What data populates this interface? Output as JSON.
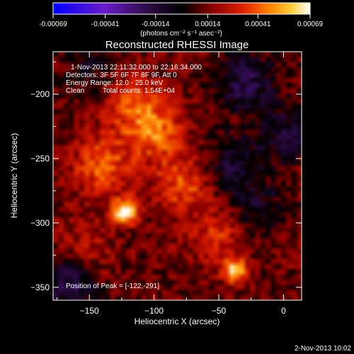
{
  "colorbar": {
    "ticks": [
      -0.00069,
      -0.00041,
      -0.00014,
      0.00014,
      0.00041,
      0.00069
    ],
    "tick_labels": [
      "-0.00069",
      "-0.00041",
      "-0.00014",
      "0.00014",
      "0.00041",
      "0.00069"
    ],
    "label": "(photons cm⁻² s⁻¹ asec⁻²)"
  },
  "info": {
    "time_range": "1-Nov-2013 22:11:32.000 to 22:16:34.000",
    "detectors": "Detectors: 3F 5F 6F 7F 8F 9F, Att 0",
    "energy": "Energy Range: 12.0 - 25.0 keV",
    "clean": "Clean",
    "counts": "Total counts: 1.54E+04",
    "peak": "Position of Peak = [-122,-291]"
  },
  "footer": {
    "timestamp": "2-Nov-2013 10:02"
  },
  "colors": {
    "axis": "#ffffff",
    "background": "#000000",
    "low": "#1010ff",
    "mid": "#000000",
    "high": "#ffffff"
  },
  "chart_data": {
    "type": "heatmap",
    "title": "Reconstructed RHESSI Image",
    "xlabel": "Heliocentric X (arcsec)",
    "ylabel": "Heliocentric Y (arcsec)",
    "xlim": [
      -178,
      14
    ],
    "ylim": [
      -360,
      -167
    ],
    "xticks": [
      -150,
      -100,
      -50,
      0
    ],
    "yticks": [
      -350,
      -300,
      -250,
      -200
    ],
    "xtick_labels": [
      "−150",
      "−100",
      "−50",
      "0"
    ],
    "ytick_labels": [
      "−350",
      "−300",
      "−250",
      "−200"
    ],
    "colorscale": "blue-purple-black-red-yellow-white",
    "sources": [
      {
        "x": -122,
        "y": -291,
        "value": 0.00069
      },
      {
        "x": -37,
        "y": -337,
        "value": 0.00048
      },
      {
        "x": -100,
        "y": -228,
        "value": 0.00034
      },
      {
        "x": -140,
        "y": -255,
        "value": 0.0003
      },
      {
        "x": -78,
        "y": -270,
        "value": 0.00026
      },
      {
        "x": -120,
        "y": -205,
        "value": 0.00022
      },
      {
        "x": -50,
        "y": -310,
        "value": 0.0002
      },
      {
        "x": -155,
        "y": -325,
        "value": 0.00018
      },
      {
        "x": -30,
        "y": -190,
        "value": -0.0003
      },
      {
        "x": -165,
        "y": -345,
        "value": -0.00035
      },
      {
        "x": -40,
        "y": -255,
        "value": -0.00022
      },
      {
        "x": -20,
        "y": -290,
        "value": -0.00018
      },
      {
        "x": -150,
        "y": -180,
        "value": -0.00015
      },
      {
        "x": 2,
        "y": -230,
        "value": -0.00022
      }
    ]
  }
}
